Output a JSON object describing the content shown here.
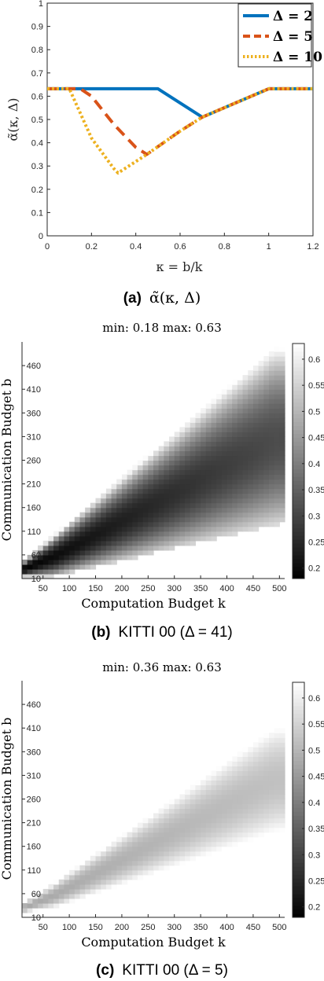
{
  "chart_data": [
    {
      "type": "line",
      "ylabel": "α̃(κ, Δ)",
      "xlabel": "κ = b/k",
      "xlim": [
        0,
        1.2
      ],
      "ylim": [
        0,
        1
      ],
      "xticks": [
        "0",
        "0.2",
        "0.4",
        "0.6",
        "0.8",
        "1",
        "1.2"
      ],
      "yticks": [
        "0",
        "0.1",
        "0.2",
        "0.3",
        "0.4",
        "0.5",
        "0.6",
        "0.7",
        "0.8",
        "0.9",
        "1"
      ],
      "legend_position": "top-right",
      "grid": false,
      "caption_prefix": "(a)",
      "caption": "α̃(κ, Δ)",
      "series": [
        {
          "name": "Δ = 2",
          "color": "#0072BD",
          "style": "solid",
          "x": [
            0,
            0.5,
            0.7,
            1.0,
            1.2
          ],
          "y": [
            0.632,
            0.632,
            0.51,
            0.632,
            0.632
          ]
        },
        {
          "name": "Δ = 5",
          "color": "#D95319",
          "style": "dashed",
          "x": [
            0,
            0.15,
            0.2,
            0.3,
            0.4,
            0.45,
            0.6,
            0.7,
            1.0,
            1.2
          ],
          "y": [
            0.632,
            0.632,
            0.6,
            0.48,
            0.38,
            0.35,
            0.45,
            0.51,
            0.632,
            0.632
          ]
        },
        {
          "name": "Δ = 10",
          "color": "#EDB120",
          "style": "dotted",
          "x": [
            0,
            0.1,
            0.2,
            0.3,
            0.32,
            0.45,
            0.6,
            0.7,
            1.0,
            1.2
          ],
          "y": [
            0.632,
            0.632,
            0.42,
            0.29,
            0.27,
            0.35,
            0.45,
            0.51,
            0.632,
            0.632
          ]
        }
      ]
    },
    {
      "type": "heatmap",
      "title": "min: 0.18 max: 0.63",
      "xlabel": "Computation Budget k",
      "ylabel": "Communication Budget b",
      "xticks": [
        "50",
        "100",
        "150",
        "200",
        "250",
        "300",
        "350",
        "400",
        "450",
        "500"
      ],
      "yticks": [
        "10",
        "60",
        "110",
        "160",
        "210",
        "260",
        "310",
        "360",
        "410",
        "460"
      ],
      "xlim": [
        10,
        510
      ],
      "ylim": [
        10,
        510
      ],
      "colorbar_ticks": [
        "0.2",
        "0.25",
        "0.3",
        "0.35",
        "0.4",
        "0.45",
        "0.5",
        "0.55",
        "0.6"
      ],
      "colorbar_range": [
        0.18,
        0.63
      ],
      "colormap": "gray",
      "min": 0.18,
      "max": 0.63,
      "delta": 41,
      "caption_prefix": "(b)",
      "caption": "KITTI 00 (Δ = 41)"
    },
    {
      "type": "heatmap",
      "title": "min: 0.36 max: 0.63",
      "xlabel": "Computation Budget k",
      "ylabel": "Communication Budget b",
      "xticks": [
        "50",
        "100",
        "150",
        "200",
        "250",
        "300",
        "350",
        "400",
        "450",
        "500"
      ],
      "yticks": [
        "10",
        "60",
        "110",
        "160",
        "210",
        "260",
        "310",
        "360",
        "410",
        "460"
      ],
      "xlim": [
        10,
        510
      ],
      "ylim": [
        10,
        510
      ],
      "colorbar_ticks": [
        "0.2",
        "0.25",
        "0.3",
        "0.35",
        "0.4",
        "0.45",
        "0.5",
        "0.55",
        "0.6"
      ],
      "colorbar_range": [
        0.18,
        0.63
      ],
      "colormap": "gray",
      "min": 0.36,
      "max": 0.63,
      "delta": 5,
      "caption_prefix": "(c)",
      "caption": "KITTI 00 (Δ = 5)"
    }
  ]
}
